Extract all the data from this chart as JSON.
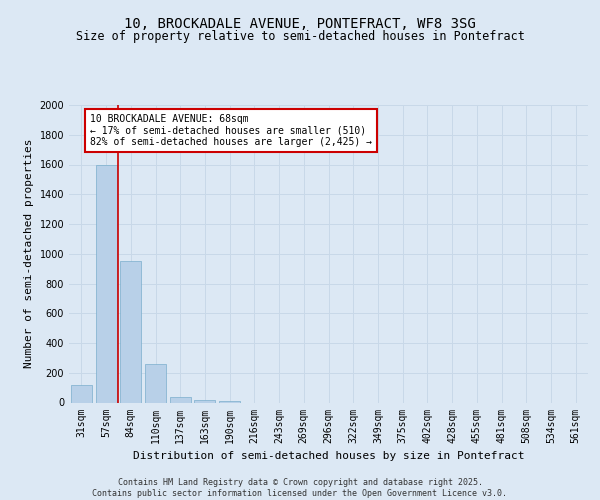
{
  "title_line1": "10, BROCKADALE AVENUE, PONTEFRACT, WF8 3SG",
  "title_line2": "Size of property relative to semi-detached houses in Pontefract",
  "xlabel": "Distribution of semi-detached houses by size in Pontefract",
  "ylabel": "Number of semi-detached properties",
  "categories": [
    "31sqm",
    "57sqm",
    "84sqm",
    "110sqm",
    "137sqm",
    "163sqm",
    "190sqm",
    "216sqm",
    "243sqm",
    "269sqm",
    "296sqm",
    "322sqm",
    "349sqm",
    "375sqm",
    "402sqm",
    "428sqm",
    "455sqm",
    "481sqm",
    "508sqm",
    "534sqm",
    "561sqm"
  ],
  "values": [
    120,
    1600,
    950,
    260,
    35,
    20,
    10,
    0,
    0,
    0,
    0,
    0,
    0,
    0,
    0,
    0,
    0,
    0,
    0,
    0,
    0
  ],
  "bar_color": "#b8d0e8",
  "bar_edge_color": "#7aaecc",
  "grid_color": "#c8d8e8",
  "background_color": "#dce8f4",
  "vline_x": 1.5,
  "vline_color": "#cc0000",
  "annotation_text": "10 BROCKADALE AVENUE: 68sqm\n← 17% of semi-detached houses are smaller (510)\n82% of semi-detached houses are larger (2,425) →",
  "annotation_box_color": "#ffffff",
  "annotation_box_edge": "#cc0000",
  "ylim": [
    0,
    2000
  ],
  "yticks": [
    0,
    200,
    400,
    600,
    800,
    1000,
    1200,
    1400,
    1600,
    1800,
    2000
  ],
  "footer_text": "Contains HM Land Registry data © Crown copyright and database right 2025.\nContains public sector information licensed under the Open Government Licence v3.0.",
  "title_fontsize": 10,
  "subtitle_fontsize": 8.5,
  "axis_label_fontsize": 8,
  "tick_fontsize": 7,
  "annotation_fontsize": 7,
  "footer_fontsize": 6
}
